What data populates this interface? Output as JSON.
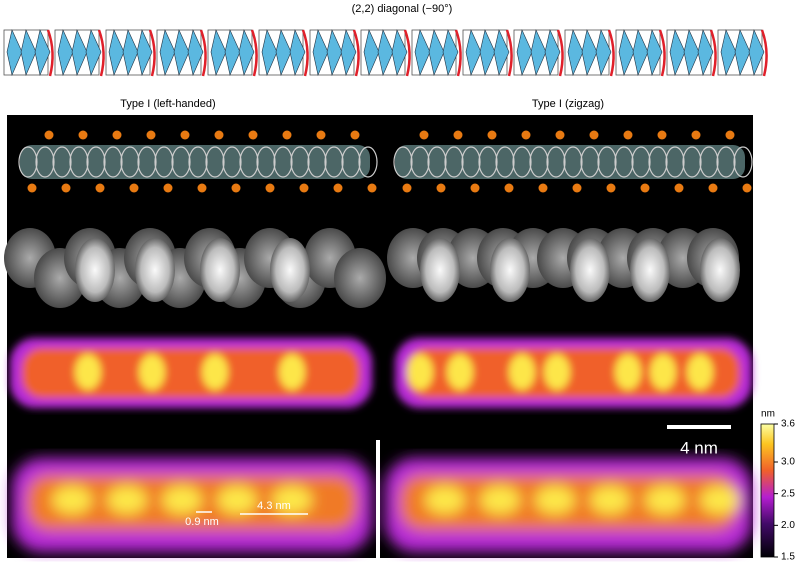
{
  "header": {
    "title": "(2,2) diagonal (−90°)"
  },
  "panels": [
    {
      "title": "Type I (left-handed)"
    },
    {
      "title": "Type I (zigzag)"
    }
  ],
  "scale_bar": {
    "label": "4 nm"
  },
  "annotations": [
    {
      "label": "0.9 nm"
    },
    {
      "label": "4.3 nm"
    }
  ],
  "colorbar": {
    "unit": "nm",
    "lim": [
      1.5,
      3.6
    ],
    "ticks": [
      3.6,
      {
        "value": 3,
        "label": "3.0"
      },
      2.5,
      {
        "value": 2,
        "label": "2.0"
      },
      1.5
    ]
  }
}
